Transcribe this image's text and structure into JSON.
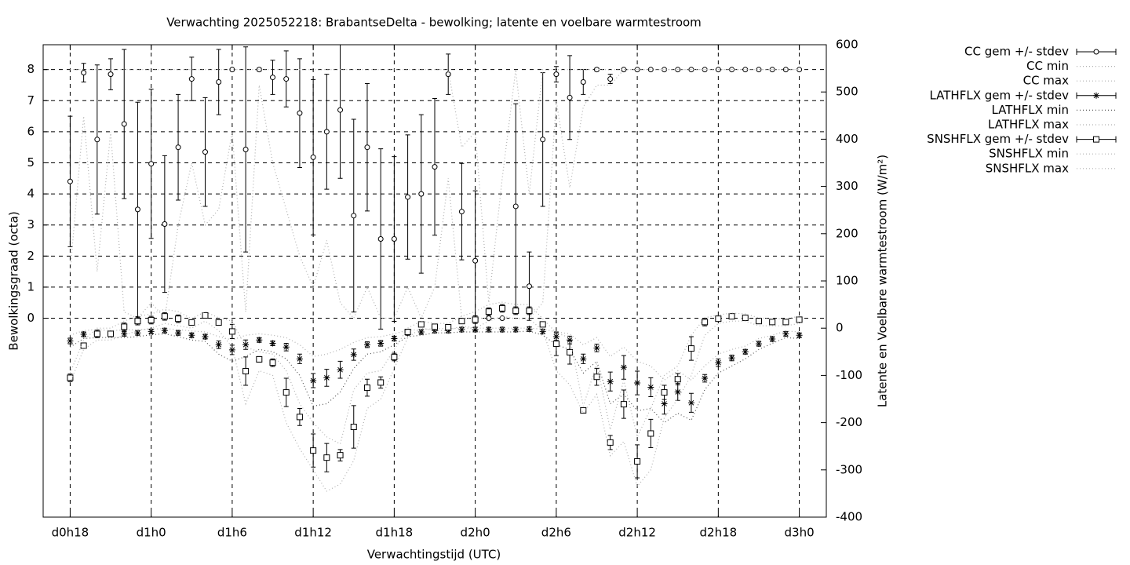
{
  "chart_data": {
    "type": "errorbar",
    "title": "Verwachting 2025052218: BrabantseDelta - bewolking; latente en voelbare warmtestroom",
    "xlabel": "Verwachtingstijd (UTC)",
    "ylabel": "Bewolkingsgraad (octa)",
    "y2label": "Latente en Voelbare warmtestroom (W/m²)",
    "x": [
      18,
      19,
      20,
      21,
      22,
      23,
      24,
      25,
      26,
      27,
      28,
      29,
      30,
      31,
      32,
      33,
      34,
      35,
      36,
      37,
      38,
      39,
      40,
      41,
      42,
      43,
      44,
      45,
      46,
      47,
      48,
      49,
      50,
      51,
      52,
      53,
      54,
      55,
      56,
      57,
      58,
      59,
      60,
      61,
      62,
      63,
      64,
      65,
      66,
      67,
      68,
      69,
      70,
      71,
      72
    ],
    "xlim": [
      16,
      74
    ],
    "xticks": [
      {
        "value": 18,
        "label": "d0h18"
      },
      {
        "value": 24,
        "label": "d1h0"
      },
      {
        "value": 30,
        "label": "d1h6"
      },
      {
        "value": 36,
        "label": "d1h12"
      },
      {
        "value": 42,
        "label": "d1h18"
      },
      {
        "value": 48,
        "label": "d2h0"
      },
      {
        "value": 54,
        "label": "d2h6"
      },
      {
        "value": 60,
        "label": "d2h12"
      },
      {
        "value": 66,
        "label": "d2h18"
      },
      {
        "value": 72,
        "label": "d3h0"
      }
    ],
    "ylim": [
      -6.4,
      8.8
    ],
    "yticks": [
      0,
      1,
      2,
      3,
      4,
      5,
      6,
      7,
      8
    ],
    "y2lim": [
      -400,
      600
    ],
    "y2ticks": [
      -400,
      -300,
      -200,
      -100,
      0,
      100,
      200,
      300,
      400,
      500,
      600
    ],
    "grid": true,
    "legend": "outside-right",
    "series": [
      {
        "name": "CC gem +/- stdev",
        "color": "#000000",
        "style": "errorbars",
        "marker": "circle",
        "axis": "y",
        "values": [
          4.4,
          7.9,
          5.75,
          7.85,
          6.25,
          3.5,
          4.97,
          3.03,
          5.5,
          7.7,
          5.35,
          7.6,
          8.0,
          5.43,
          8.0,
          7.75,
          7.7,
          6.6,
          5.18,
          6.0,
          6.7,
          3.3,
          5.5,
          2.55,
          2.55,
          3.9,
          4.0,
          4.87,
          7.85,
          3.43,
          1.85,
          0,
          0,
          3.6,
          1.03,
          5.75,
          7.85,
          7.1,
          7.6,
          8.0,
          7.7,
          8,
          8,
          8,
          8,
          8,
          8,
          8,
          8,
          8,
          8,
          8,
          8,
          8,
          8
        ],
        "stdev": [
          2.1,
          0.3,
          2.4,
          0.5,
          2.4,
          3.45,
          2.4,
          2.2,
          1.7,
          0.7,
          1.75,
          1.05,
          0,
          3.3,
          0.05,
          0.55,
          0.9,
          1.75,
          2.5,
          1.85,
          2.2,
          3.1,
          2.05,
          2.9,
          2.65,
          2.0,
          2.55,
          2.2,
          0.65,
          1.55,
          2.25,
          0,
          0,
          3.3,
          1.1,
          2.15,
          0.25,
          1.35,
          0.4,
          0.05,
          0.15,
          0,
          0,
          0,
          0,
          0,
          0,
          0,
          0,
          0,
          0,
          0,
          0,
          0,
          0
        ]
      },
      {
        "name": "CC min",
        "color": "#b0b0b0",
        "style": "dotted",
        "axis": "y",
        "values": [
          1.5,
          6.5,
          1.5,
          6.0,
          0.2,
          0,
          0.5,
          0,
          3.0,
          5.0,
          3.0,
          3.5,
          6.0,
          0.2,
          7.5,
          5.0,
          3.5,
          2.0,
          1.0,
          2.5,
          0.5,
          0,
          1.0,
          0,
          0,
          1.0,
          0,
          1.0,
          4.5,
          0,
          0,
          0,
          0,
          0,
          0,
          0.5,
          7.0,
          4.2,
          6.8,
          7.5,
          7.5,
          8,
          8,
          8,
          8,
          8,
          8,
          8,
          8,
          8,
          8,
          8,
          8,
          8,
          8
        ]
      },
      {
        "name": "CC max",
        "color": "#b0b0b0",
        "style": "dotted",
        "axis": "y",
        "values": [
          8,
          8,
          8,
          8,
          8,
          8,
          8,
          8,
          8,
          8,
          8,
          8,
          8,
          8,
          8,
          8,
          8,
          8,
          8,
          8,
          8,
          8,
          8,
          8,
          8,
          8,
          8,
          8,
          8,
          5.5,
          6.0,
          0.5,
          4.5,
          8,
          4.0,
          8,
          8,
          8,
          8,
          8,
          8,
          8,
          8,
          8,
          8,
          8,
          8,
          8,
          8,
          8,
          8,
          8,
          8,
          8,
          8
        ]
      },
      {
        "name": "LATHFLX gem +/- stdev",
        "color": "#000000",
        "style": "errorbars",
        "marker": "asterisk",
        "axis": "y2",
        "values": [
          -27,
          -13,
          -13,
          -13,
          -12,
          -10,
          -7,
          -5,
          -10,
          -15,
          -18,
          -35,
          -46,
          -35,
          -25,
          -32,
          -40,
          -65,
          -111,
          -105,
          -88,
          -56,
          -35,
          -32,
          -22,
          -10,
          -8,
          -5,
          -5,
          -3,
          -3,
          -3,
          -3,
          -3,
          -2,
          -7,
          -18,
          -25,
          -65,
          -42,
          -113,
          -83,
          -116,
          -125,
          -160,
          -135,
          -158,
          -106,
          -73,
          -63,
          -50,
          -33,
          -23,
          -12,
          -15
        ],
        "stdev": [
          6,
          5,
          5,
          5,
          5,
          5,
          5,
          5,
          5,
          5,
          5,
          8,
          10,
          10,
          5,
          5,
          8,
          10,
          15,
          18,
          18,
          12,
          6,
          6,
          5,
          5,
          5,
          5,
          5,
          5,
          5,
          5,
          5,
          5,
          5,
          5,
          8,
          8,
          10,
          8,
          20,
          25,
          25,
          20,
          22,
          18,
          20,
          8,
          8,
          6,
          5,
          5,
          5,
          5,
          5
        ]
      },
      {
        "name": "LATHFLX min",
        "color": "#555555",
        "style": "dotted",
        "axis": "y2",
        "values": [
          -40,
          -22,
          -20,
          -20,
          -20,
          -18,
          -14,
          -12,
          -18,
          -25,
          -28,
          -55,
          -70,
          -60,
          -45,
          -50,
          -65,
          -100,
          -165,
          -160,
          -135,
          -85,
          -55,
          -50,
          -35,
          -18,
          -15,
          -10,
          -10,
          -8,
          -8,
          -8,
          -8,
          -8,
          -6,
          -15,
          -35,
          -45,
          -95,
          -70,
          -160,
          -140,
          -175,
          -170,
          -200,
          -180,
          -195,
          -130,
          -95,
          -80,
          -65,
          -45,
          -32,
          -20,
          -22
        ]
      },
      {
        "name": "LATHFLX max",
        "color": "#b0b0b0",
        "style": "dotted",
        "axis": "y2",
        "values": [
          -15,
          -5,
          -3,
          -5,
          -4,
          -3,
          -2,
          -1,
          -3,
          -6,
          -8,
          -18,
          -25,
          -15,
          -12,
          -15,
          -20,
          -35,
          -60,
          -55,
          -45,
          -30,
          -20,
          -18,
          -12,
          -4,
          -3,
          -1,
          -1,
          0,
          0,
          0,
          0,
          0,
          0,
          -2,
          -8,
          -12,
          -35,
          -20,
          -60,
          -40,
          -70,
          -80,
          -110,
          -90,
          -110,
          -80,
          -55,
          -45,
          -38,
          -22,
          -15,
          -6,
          -8
        ]
      },
      {
        "name": "SNSHFLX gem +/- stdev",
        "color": "#000000",
        "style": "errorbars",
        "marker": "square",
        "axis": "y2",
        "values": [
          -105,
          -37,
          -12,
          -12,
          3,
          15,
          17,
          25,
          20,
          12,
          27,
          12,
          -7,
          -91,
          -66,
          -73,
          -136,
          -188,
          -259,
          -274,
          -269,
          -209,
          -126,
          -115,
          -61,
          -8,
          8,
          3,
          2,
          15,
          18,
          35,
          42,
          37,
          37,
          8,
          -33,
          -51,
          -174,
          -103,
          -242,
          -161,
          -282,
          -223,
          -136,
          -108,
          -43,
          13,
          20,
          25,
          22,
          15,
          13,
          13,
          18
        ],
        "stdev": [
          8,
          5,
          8,
          5,
          8,
          8,
          8,
          8,
          8,
          5,
          3,
          5,
          15,
          30,
          6,
          8,
          30,
          18,
          35,
          30,
          12,
          45,
          18,
          12,
          8,
          5,
          3,
          3,
          3,
          3,
          8,
          8,
          8,
          8,
          8,
          5,
          25,
          25,
          3,
          18,
          15,
          30,
          35,
          30,
          15,
          12,
          25,
          8,
          3,
          3,
          3,
          3,
          3,
          3,
          3
        ]
      },
      {
        "name": "SNSHFLX min",
        "color": "#b0b0b0",
        "style": "dotted",
        "axis": "y2",
        "values": [
          -115,
          -45,
          -25,
          -25,
          -15,
          -5,
          0,
          10,
          5,
          0,
          15,
          -5,
          -40,
          -160,
          -90,
          -100,
          -200,
          -255,
          -300,
          -345,
          -330,
          -280,
          -170,
          -150,
          -85,
          -20,
          0,
          -5,
          -5,
          5,
          0,
          15,
          25,
          20,
          20,
          -5,
          -90,
          -120,
          -180,
          -140,
          -270,
          -240,
          -335,
          -300,
          -190,
          -150,
          -100,
          -15,
          10,
          15,
          15,
          5,
          5,
          5,
          10
        ]
      },
      {
        "name": "SNSHFLX max",
        "color": "#b0b0b0",
        "style": "dotted",
        "axis": "y2",
        "values": [
          -95,
          -25,
          0,
          0,
          15,
          25,
          30,
          40,
          35,
          20,
          35,
          22,
          15,
          -40,
          -50,
          -55,
          -90,
          -160,
          -200,
          -230,
          -245,
          -130,
          -95,
          -90,
          -45,
          0,
          15,
          10,
          10,
          25,
          35,
          50,
          55,
          50,
          50,
          20,
          -10,
          -20,
          -165,
          -75,
          -215,
          -110,
          -230,
          -170,
          -100,
          -80,
          -15,
          22,
          28,
          32,
          30,
          22,
          20,
          20,
          25
        ]
      }
    ]
  }
}
